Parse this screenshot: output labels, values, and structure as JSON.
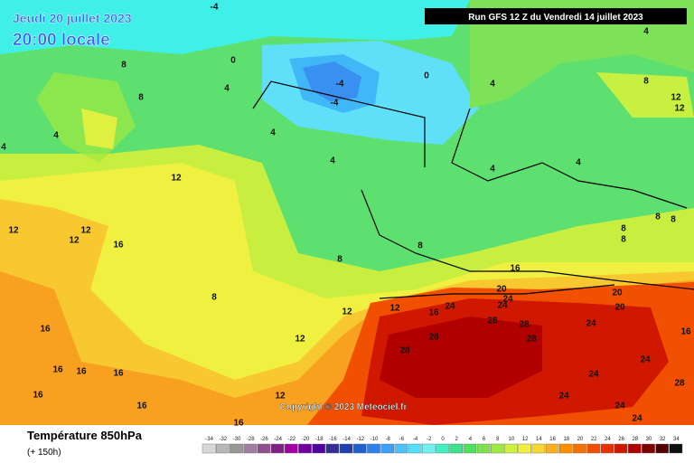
{
  "header": {
    "date": "Jeudi 20 juillet 2023",
    "time": "20:00 locale",
    "run": "Run GFS 12 Z du Vendredi 14 juillet 2023"
  },
  "copyright": "Copyright © 2023 Meteociel.fr",
  "footer": {
    "title": "Température 850hPa",
    "subtitle": "(+ 150h)"
  },
  "scale": {
    "ticks": [
      -34,
      -32,
      -30,
      -28,
      -26,
      -24,
      -22,
      -20,
      -18,
      -16,
      -14,
      -12,
      -10,
      -8,
      -6,
      -4,
      -2,
      0,
      2,
      4,
      6,
      8,
      10,
      12,
      14,
      16,
      18,
      20,
      22,
      24,
      26,
      28,
      30,
      32,
      34
    ],
    "colors": [
      "#d8d8d8",
      "#b8b8b8",
      "#989898",
      "#a080a0",
      "#905090",
      "#802080",
      "#a000a0",
      "#7000a0",
      "#5000a0",
      "#303090",
      "#2040b0",
      "#2060d0",
      "#3080f0",
      "#40a0f8",
      "#50c0f8",
      "#50e0f8",
      "#70f0f0",
      "#40f0c0",
      "#40e090",
      "#50e060",
      "#80e050",
      "#a0e840",
      "#d0f040",
      "#f0f040",
      "#f8d830",
      "#f8b020",
      "#f89000",
      "#f87000",
      "#f05000",
      "#e83000",
      "#d01800",
      "#b00000",
      "#800000",
      "#500000",
      "#101010"
    ]
  },
  "map_labels": [
    -4,
    0,
    4,
    8,
    8,
    4,
    4,
    12,
    12,
    12,
    12,
    16,
    8,
    4,
    4,
    -4,
    -4,
    0,
    4,
    4,
    4,
    4,
    8,
    12,
    12,
    8,
    8,
    8,
    8,
    8,
    8,
    16,
    12,
    12,
    16,
    24,
    20,
    24,
    24,
    20,
    20,
    28,
    28,
    28,
    28,
    24,
    16,
    28,
    12,
    16,
    16,
    16,
    16,
    16,
    16,
    12,
    16,
    24,
    24,
    28,
    24,
    24,
    24
  ]
}
